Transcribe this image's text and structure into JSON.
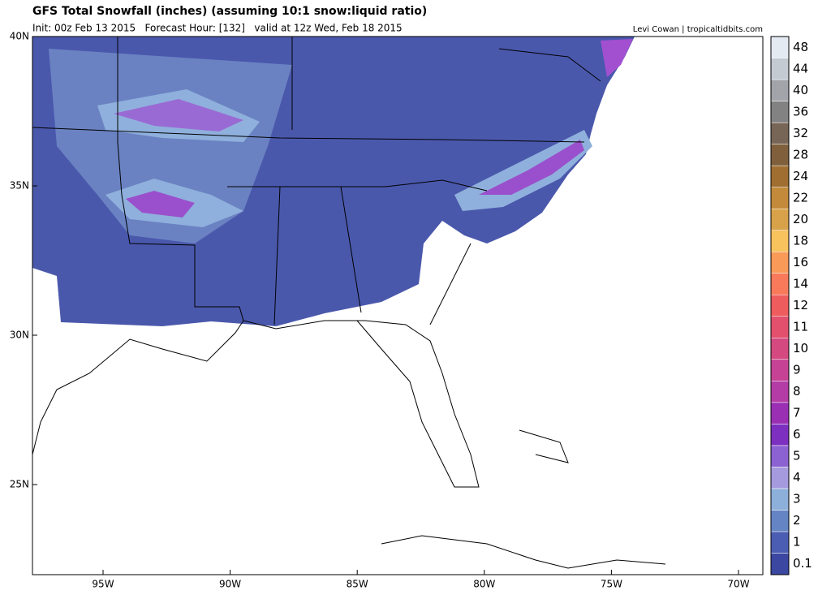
{
  "header": {
    "title": "GFS Total Snowfall (inches) (assuming 10:1 snow:liquid ratio)",
    "info": "Init: 00z Feb 13 2015   Forecast Hour: [132]   valid at 12z Wed, Feb 18 2015",
    "credit": "Levi Cowan | tropicaltidbits.com"
  },
  "map": {
    "lat_labels": [
      "40N",
      "35N",
      "30N",
      "25N"
    ],
    "lon_labels": [
      "95W",
      "90W",
      "85W",
      "80W",
      "75W",
      "70W"
    ]
  },
  "colorbar": {
    "levels": [
      0.1,
      1,
      2,
      3,
      4,
      5,
      6,
      7,
      8,
      9,
      10,
      11,
      12,
      14,
      16,
      18,
      20,
      22,
      24,
      28,
      32,
      36,
      40,
      44,
      48
    ],
    "colors": [
      "#3b47a0",
      "#4b5db2",
      "#6484c4",
      "#8db0da",
      "#a69ade",
      "#8c62d2",
      "#7d30c0",
      "#9a2fb4",
      "#b43ca6",
      "#c64294",
      "#d44a80",
      "#e2506e",
      "#ee5c5e",
      "#f87a5a",
      "#f99a58",
      "#f8c25c",
      "#d8a24a",
      "#c28a3a",
      "#a06e30",
      "#80603c",
      "#776656",
      "#828282",
      "#a2a4aa",
      "#c4cad2",
      "#e4eaf2"
    ]
  }
}
